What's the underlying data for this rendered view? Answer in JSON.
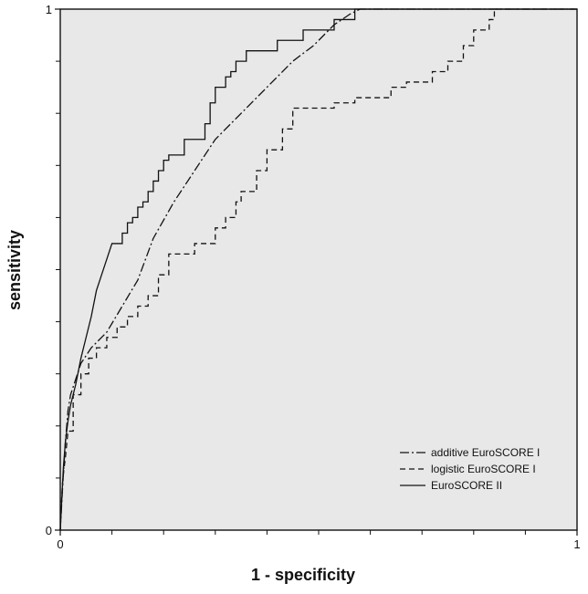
{
  "chart_data": {
    "type": "line",
    "xlabel": "1 - specificity",
    "ylabel": "sensitivity",
    "xlim": [
      0,
      1
    ],
    "ylim": [
      0,
      1
    ],
    "x_ticks": [
      {
        "value": 0,
        "label": "0"
      },
      {
        "value": 1,
        "label": "1"
      }
    ],
    "y_ticks": [
      {
        "value": 0,
        "label": "0"
      },
      {
        "value": 1,
        "label": "1"
      }
    ],
    "grid": false,
    "plot_background": "#e8e8e8",
    "legend_position": "bottom-right",
    "series": [
      {
        "name": "additive EuroSCORE I",
        "dash": "dashdot",
        "color": "#111111",
        "points": [
          [
            0,
            0
          ],
          [
            0.005,
            0.09
          ],
          [
            0.01,
            0.17
          ],
          [
            0.015,
            0.23
          ],
          [
            0.02,
            0.26
          ],
          [
            0.03,
            0.29
          ],
          [
            0.04,
            0.32
          ],
          [
            0.06,
            0.35
          ],
          [
            0.09,
            0.38
          ],
          [
            0.12,
            0.43
          ],
          [
            0.15,
            0.48
          ],
          [
            0.18,
            0.56
          ],
          [
            0.22,
            0.63
          ],
          [
            0.26,
            0.69
          ],
          [
            0.3,
            0.75
          ],
          [
            0.35,
            0.8
          ],
          [
            0.4,
            0.85
          ],
          [
            0.45,
            0.9
          ],
          [
            0.49,
            0.93
          ],
          [
            0.53,
            0.97
          ],
          [
            0.56,
            0.99
          ],
          [
            0.58,
            1.0
          ],
          [
            1.0,
            1.0
          ]
        ]
      },
      {
        "name": "logistic EuroSCORE I",
        "dash": "dashed",
        "color": "#111111",
        "points": [
          [
            0,
            0
          ],
          [
            0.002,
            0.05
          ],
          [
            0.005,
            0.1
          ],
          [
            0.01,
            0.14
          ],
          [
            0.015,
            0.19
          ],
          [
            0.025,
            0.19
          ],
          [
            0.025,
            0.26
          ],
          [
            0.04,
            0.26
          ],
          [
            0.04,
            0.3
          ],
          [
            0.055,
            0.3
          ],
          [
            0.055,
            0.33
          ],
          [
            0.07,
            0.33
          ],
          [
            0.07,
            0.35
          ],
          [
            0.09,
            0.35
          ],
          [
            0.09,
            0.37
          ],
          [
            0.11,
            0.37
          ],
          [
            0.11,
            0.39
          ],
          [
            0.13,
            0.39
          ],
          [
            0.13,
            0.41
          ],
          [
            0.15,
            0.41
          ],
          [
            0.15,
            0.43
          ],
          [
            0.17,
            0.43
          ],
          [
            0.17,
            0.45
          ],
          [
            0.19,
            0.45
          ],
          [
            0.19,
            0.49
          ],
          [
            0.21,
            0.49
          ],
          [
            0.21,
            0.53
          ],
          [
            0.26,
            0.53
          ],
          [
            0.26,
            0.55
          ],
          [
            0.3,
            0.55
          ],
          [
            0.3,
            0.58
          ],
          [
            0.32,
            0.58
          ],
          [
            0.32,
            0.6
          ],
          [
            0.34,
            0.6
          ],
          [
            0.34,
            0.63
          ],
          [
            0.35,
            0.63
          ],
          [
            0.35,
            0.65
          ],
          [
            0.38,
            0.65
          ],
          [
            0.38,
            0.69
          ],
          [
            0.4,
            0.69
          ],
          [
            0.4,
            0.73
          ],
          [
            0.43,
            0.73
          ],
          [
            0.43,
            0.77
          ],
          [
            0.45,
            0.77
          ],
          [
            0.45,
            0.81
          ],
          [
            0.53,
            0.81
          ],
          [
            0.53,
            0.82
          ],
          [
            0.57,
            0.82
          ],
          [
            0.57,
            0.83
          ],
          [
            0.64,
            0.83
          ],
          [
            0.64,
            0.85
          ],
          [
            0.67,
            0.85
          ],
          [
            0.67,
            0.86
          ],
          [
            0.72,
            0.86
          ],
          [
            0.72,
            0.88
          ],
          [
            0.75,
            0.88
          ],
          [
            0.75,
            0.9
          ],
          [
            0.78,
            0.9
          ],
          [
            0.78,
            0.93
          ],
          [
            0.8,
            0.93
          ],
          [
            0.8,
            0.96
          ],
          [
            0.83,
            0.96
          ],
          [
            0.83,
            0.98
          ],
          [
            0.84,
            0.98
          ],
          [
            0.84,
            1.0
          ],
          [
            1.0,
            1.0
          ]
        ]
      },
      {
        "name": "EuroSCORE II",
        "dash": "solid",
        "color": "#111111",
        "points": [
          [
            0,
            0
          ],
          [
            0.003,
            0.06
          ],
          [
            0.006,
            0.12
          ],
          [
            0.01,
            0.17
          ],
          [
            0.015,
            0.21
          ],
          [
            0.02,
            0.24
          ],
          [
            0.03,
            0.28
          ],
          [
            0.04,
            0.33
          ],
          [
            0.05,
            0.37
          ],
          [
            0.06,
            0.41
          ],
          [
            0.07,
            0.46
          ],
          [
            0.08,
            0.49
          ],
          [
            0.09,
            0.52
          ],
          [
            0.1,
            0.55
          ],
          [
            0.12,
            0.55
          ],
          [
            0.12,
            0.57
          ],
          [
            0.13,
            0.57
          ],
          [
            0.13,
            0.59
          ],
          [
            0.14,
            0.59
          ],
          [
            0.14,
            0.6
          ],
          [
            0.15,
            0.6
          ],
          [
            0.15,
            0.62
          ],
          [
            0.16,
            0.62
          ],
          [
            0.16,
            0.63
          ],
          [
            0.17,
            0.63
          ],
          [
            0.17,
            0.65
          ],
          [
            0.18,
            0.65
          ],
          [
            0.18,
            0.67
          ],
          [
            0.19,
            0.67
          ],
          [
            0.19,
            0.69
          ],
          [
            0.2,
            0.69
          ],
          [
            0.2,
            0.71
          ],
          [
            0.21,
            0.71
          ],
          [
            0.21,
            0.72
          ],
          [
            0.24,
            0.72
          ],
          [
            0.24,
            0.75
          ],
          [
            0.28,
            0.75
          ],
          [
            0.28,
            0.78
          ],
          [
            0.29,
            0.78
          ],
          [
            0.29,
            0.82
          ],
          [
            0.3,
            0.82
          ],
          [
            0.3,
            0.85
          ],
          [
            0.32,
            0.85
          ],
          [
            0.32,
            0.87
          ],
          [
            0.33,
            0.87
          ],
          [
            0.33,
            0.88
          ],
          [
            0.34,
            0.88
          ],
          [
            0.34,
            0.9
          ],
          [
            0.36,
            0.9
          ],
          [
            0.36,
            0.92
          ],
          [
            0.42,
            0.92
          ],
          [
            0.42,
            0.94
          ],
          [
            0.47,
            0.94
          ],
          [
            0.47,
            0.96
          ],
          [
            0.53,
            0.96
          ],
          [
            0.53,
            0.98
          ],
          [
            0.57,
            0.98
          ],
          [
            0.57,
            1.0
          ],
          [
            1.0,
            1.0
          ]
        ]
      }
    ]
  }
}
